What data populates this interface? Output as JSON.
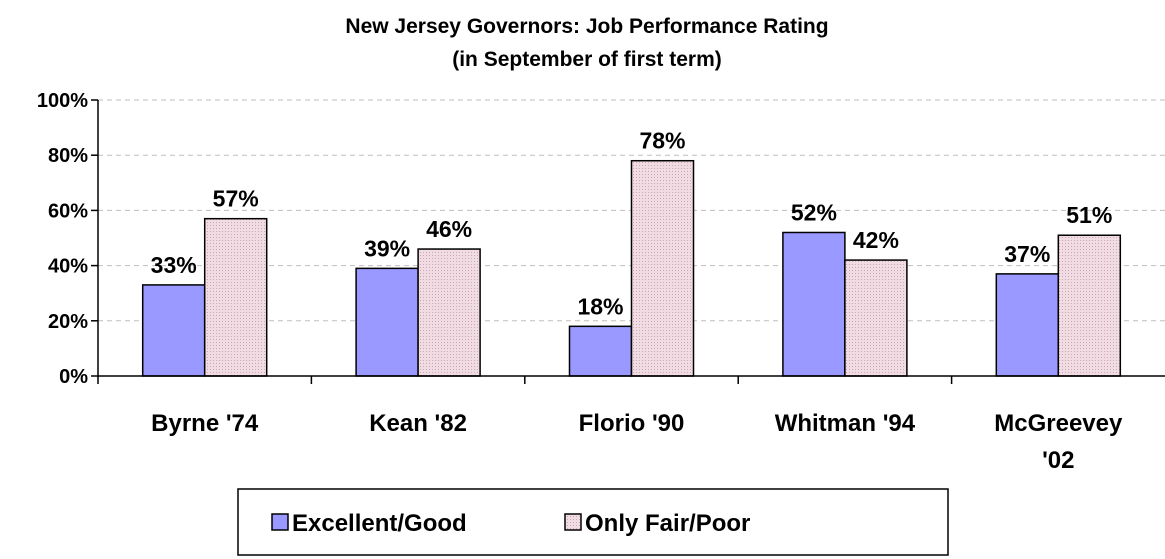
{
  "chart_data": {
    "type": "bar",
    "title": "New Jersey Governors:  Job Performance Rating",
    "subtitle": "(in September of first term)",
    "categories": [
      [
        "Byrne '74"
      ],
      [
        "Kean '82"
      ],
      [
        "Florio '90"
      ],
      [
        "Whitman '94"
      ],
      [
        "McGreevey",
        "'02"
      ]
    ],
    "series": [
      {
        "name": "Excellent/Good",
        "values": [
          33,
          39,
          18,
          52,
          37
        ],
        "labels": [
          "33%",
          "39%",
          "18%",
          "52%",
          "37%"
        ]
      },
      {
        "name": "Only Fair/Poor",
        "values": [
          57,
          46,
          78,
          42,
          51
        ],
        "labels": [
          "57%",
          "46%",
          "78%",
          "42%",
          "51%"
        ]
      }
    ],
    "ylim": [
      0,
      100
    ],
    "yticks": [
      0,
      20,
      40,
      60,
      80,
      100
    ],
    "ytick_labels": [
      "0%",
      "20%",
      "40%",
      "60%",
      "80%",
      "100%"
    ],
    "grid": true,
    "legend_position": "bottom",
    "colors": {
      "series": [
        "#9999ff",
        "#f2dce3"
      ],
      "stroke": "#000000",
      "grid": "#bfbfbf"
    }
  }
}
